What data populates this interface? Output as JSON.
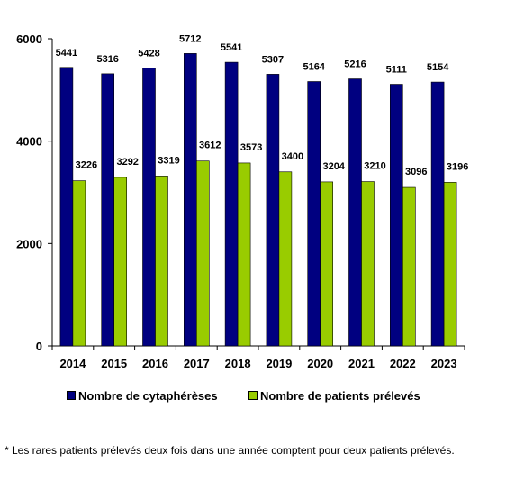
{
  "chart_data": {
    "type": "bar",
    "categories": [
      "2014",
      "2015",
      "2016",
      "2017",
      "2018",
      "2019",
      "2020",
      "2021",
      "2022",
      "2023"
    ],
    "series": [
      {
        "name": "Nombre de cytaphérèses",
        "color": "#000080",
        "values": [
          5441,
          5316,
          5428,
          5712,
          5541,
          5307,
          5164,
          5216,
          5111,
          5154
        ]
      },
      {
        "name": "Nombre de patients prélevés",
        "color": "#99cc00",
        "values": [
          3226,
          3292,
          3319,
          3612,
          3573,
          3400,
          3204,
          3210,
          3096,
          3196
        ]
      }
    ],
    "ylim": [
      0,
      6000
    ],
    "yticks": [
      0,
      2000,
      4000,
      6000
    ],
    "grid": false,
    "legend_position": "bottom"
  },
  "footnote": "* Les rares patients prélevés deux fois dans une année comptent pour deux patients prélevés."
}
